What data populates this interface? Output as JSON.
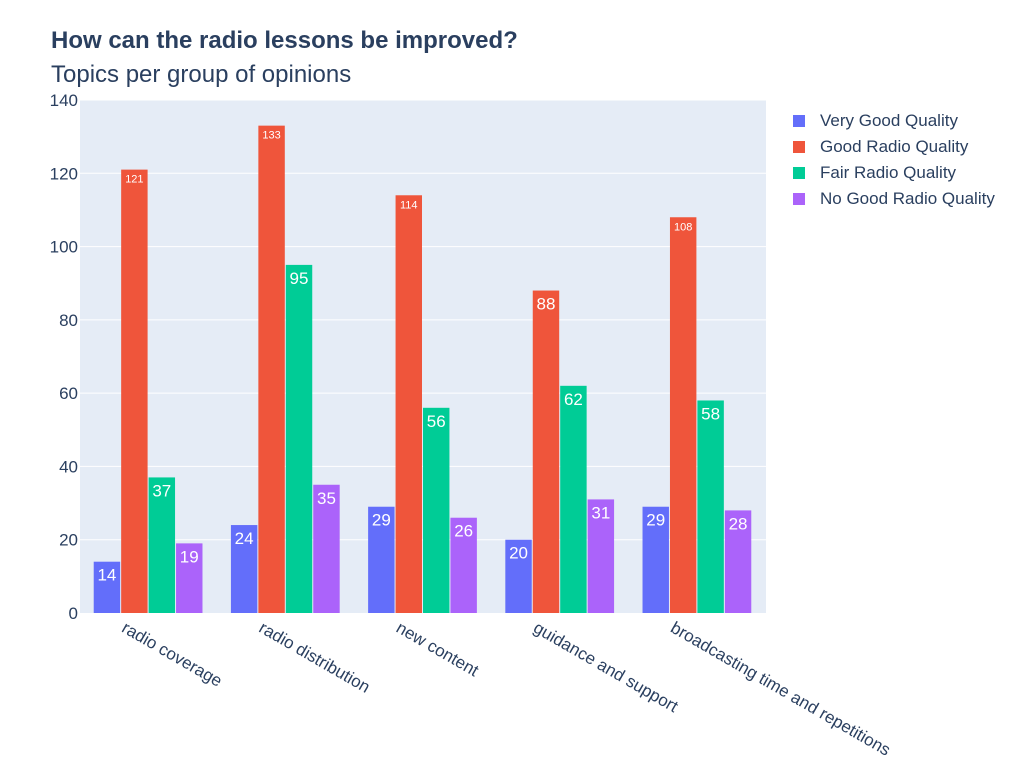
{
  "chart_data": {
    "type": "bar",
    "title": "How can the radio lessons be improved?",
    "subtitle": "Topics per group of opinions",
    "xlabel": "",
    "ylabel": "",
    "ylim": [
      0,
      140
    ],
    "yticks": [
      0,
      20,
      40,
      60,
      80,
      100,
      120,
      140
    ],
    "grid": true,
    "legend_position": "top-right",
    "categories": [
      "radio coverage",
      "radio distribution",
      "new content",
      "guidance and support",
      "broadcasting time and repetitions"
    ],
    "series": [
      {
        "name": "Very Good Quality",
        "color": "#636efa",
        "values": [
          14,
          24,
          29,
          20,
          29
        ]
      },
      {
        "name": "Good Radio Quality",
        "color": "#ef553b",
        "values": [
          121,
          133,
          114,
          88,
          108
        ]
      },
      {
        "name": "Fair Radio Quality",
        "color": "#00cc96",
        "values": [
          37,
          95,
          56,
          62,
          58
        ]
      },
      {
        "name": "No Good Radio Quality",
        "color": "#ab63fa",
        "values": [
          19,
          35,
          26,
          31,
          28
        ]
      }
    ]
  }
}
